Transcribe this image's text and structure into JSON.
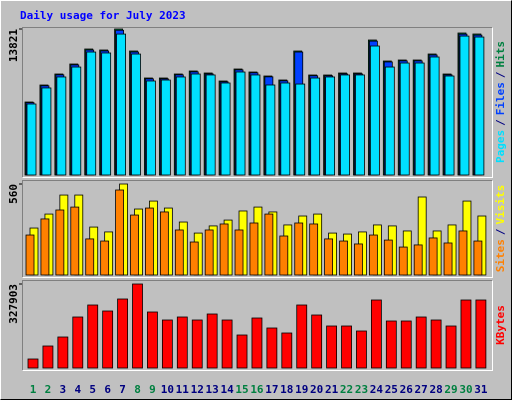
{
  "chart_data": {
    "type": "bar",
    "title": "Daily usage for July 2023",
    "categories": [
      "1",
      "2",
      "3",
      "4",
      "5",
      "6",
      "7",
      "8",
      "9",
      "10",
      "11",
      "12",
      "13",
      "14",
      "15",
      "16",
      "17",
      "18",
      "19",
      "20",
      "21",
      "22",
      "23",
      "24",
      "25",
      "26",
      "27",
      "28",
      "29",
      "30",
      "31"
    ],
    "category_colors": [
      "#008040",
      "#008040",
      "#000080",
      "#000080",
      "#000080",
      "#000080",
      "#000080",
      "#008040",
      "#008040",
      "#000080",
      "#000080",
      "#000080",
      "#000080",
      "#000080",
      "#008040",
      "#008040",
      "#000080",
      "#000080",
      "#000080",
      "#000080",
      "#000080",
      "#008040",
      "#008040",
      "#000080",
      "#000080",
      "#000080",
      "#000080",
      "#000080",
      "#008040",
      "#008040",
      "#000080"
    ],
    "separator": "/",
    "panels": [
      {
        "ylim": [
          0,
          13821
        ],
        "yticks": [
          13821
        ],
        "series": [
          {
            "name": "Hits",
            "color": "#008040",
            "values": [
              6910,
              8519,
              9561,
              10507,
              11927,
              11833,
              13821,
              11738,
              9182,
              9182,
              9561,
              9845,
              9655,
              8898,
              10034,
              9750,
              9371,
              8993,
              11738,
              9466,
              9466,
              9655,
              9655,
              12779,
              10791,
              10886,
              10886,
              11454,
              9561,
              13442,
              13347
            ]
          },
          {
            "name": "Files",
            "color": "#0040ff",
            "values": [
              6850,
              8440,
              9480,
              10420,
              11830,
              11740,
              13700,
              11640,
              9100,
              9100,
              9480,
              9760,
              9570,
              8820,
              9950,
              9670,
              9290,
              8910,
              11640,
              9390,
              9390,
              9570,
              9570,
              12670,
              10700,
              10800,
              10800,
              11360,
              9480,
              13330,
              13240
            ]
          },
          {
            "name": "Pages",
            "color": "#00e0ff",
            "values": [
              6720,
              8240,
              9280,
              10220,
              11640,
              11550,
              13340,
              11450,
              8900,
              8990,
              9280,
              9560,
              9470,
              8710,
              9750,
              9470,
              8520,
              8710,
              8610,
              9180,
              9280,
              9470,
              9470,
              12210,
              10220,
              10600,
              10600,
              11170,
              9370,
              13150,
              13060
            ]
          }
        ]
      },
      {
        "ylim": [
          0,
          560
        ],
        "yticks": [
          560
        ],
        "series": [
          {
            "name": "Visits",
            "color": "#ffff00",
            "values": [
              289,
              375,
              492,
              492,
              295,
              265,
              560,
              406,
              455,
              412,
              326,
              258,
              302,
              338,
              394,
              418,
              388,
              308,
              363,
              375,
              258,
              252,
              265,
              308,
              302,
              271,
              480,
              271,
              308,
              455,
              363
            ]
          },
          {
            "name": "Sites",
            "color": "#ff8000",
            "values": [
              246,
              345,
              400,
              418,
              222,
              209,
              523,
              369,
              412,
              388,
              277,
              203,
              277,
              314,
              277,
              320,
              375,
              240,
              320,
              314,
              222,
              209,
              191,
              246,
              215,
              172,
              185,
              228,
              197,
              271,
              209
            ]
          }
        ]
      },
      {
        "ylim": [
          0,
          327903
        ],
        "yticks": [
          327903
        ],
        "series": [
          {
            "name": "KBytes",
            "color": "#ff0000",
            "values": [
              35132,
              85879,
              121012,
              199084,
              245927,
              222505,
              269348,
              327903,
              218602,
              187373,
              199084,
              187373,
              210794,
              187373,
              128819,
              195180,
              156144,
              136626,
              245927,
              206891,
              163951,
              163951,
              144433,
              265445,
              183469,
              183469,
              199084,
              187373,
              163951,
              265445,
              265445
            ]
          }
        ]
      }
    ]
  }
}
